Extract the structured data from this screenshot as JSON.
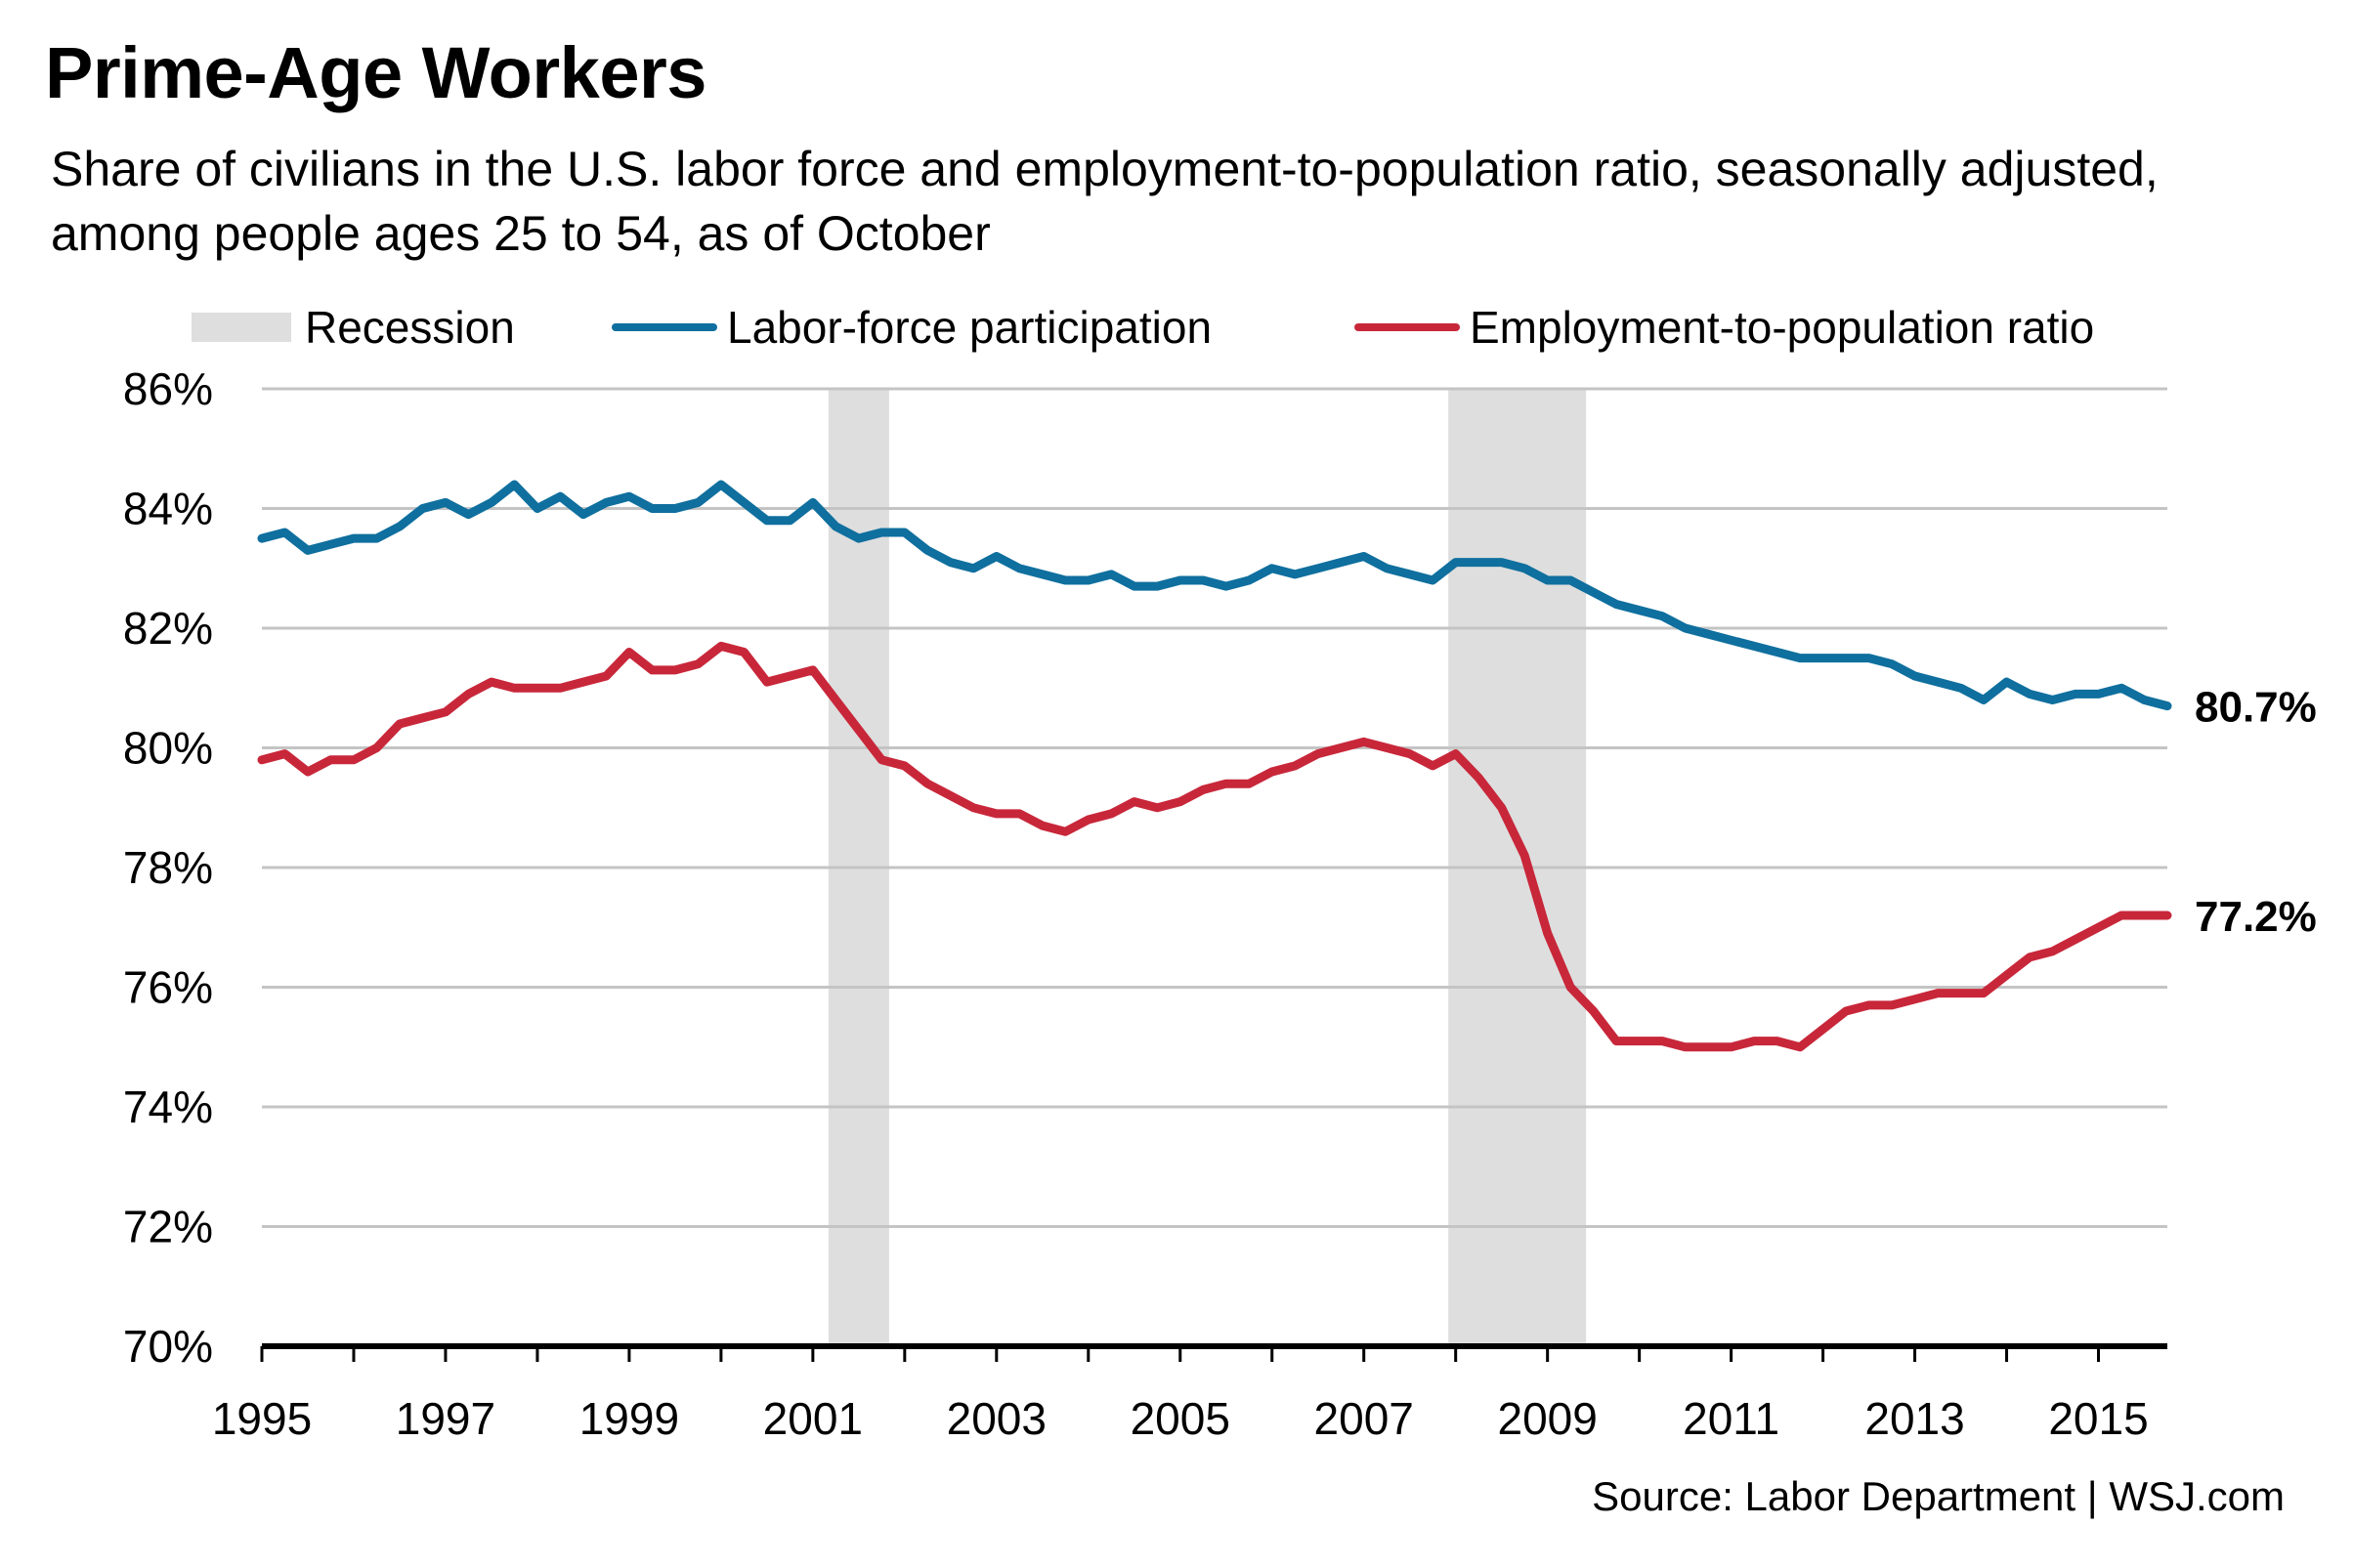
{
  "header": {
    "title": "Prime-Age Workers",
    "subtitle": "Share of civilians in the U.S. labor force and employment-to-population ratio, seasonally adjusted, among people ages 25 to 54, as of October"
  },
  "legend": {
    "recession": "Recession",
    "lfp": "Labor-force participation",
    "epop": "Employment-to-population ratio"
  },
  "source": "Source: Labor Department  |  WSJ.com",
  "colors": {
    "lfp": "#0f6f9e",
    "epop": "#c8273a",
    "recession": "#dedede",
    "grid": "#c4c4c4",
    "axis": "#000000"
  },
  "chart_data": {
    "type": "line",
    "title": "Prime-Age Workers",
    "subtitle": "Share of civilians in the U.S. labor force and employment-to-population ratio, seasonally adjusted, among people ages 25 to 54, as of October",
    "xlabel": "",
    "ylabel": "",
    "xlim": [
      1995.0,
      2015.75
    ],
    "ylim": [
      70,
      86
    ],
    "y_ticks": [
      "70%",
      "72%",
      "74%",
      "76%",
      "78%",
      "80%",
      "82%",
      "84%",
      "86%"
    ],
    "x_ticks": [
      "1995",
      "1997",
      "1999",
      "2001",
      "2003",
      "2005",
      "2007",
      "2009",
      "2011",
      "2013",
      "2015"
    ],
    "grid": "horizontal",
    "legend_position": "top",
    "recessions": [
      [
        2001.17,
        2001.83
      ],
      [
        2007.92,
        2009.42
      ]
    ],
    "series": [
      {
        "name": "Labor-force participation",
        "end_label": "80.7%",
        "x": [
          1995.0,
          1995.25,
          1995.5,
          1995.75,
          1996.0,
          1996.25,
          1996.5,
          1996.75,
          1997.0,
          1997.25,
          1997.5,
          1997.75,
          1998.0,
          1998.25,
          1998.5,
          1998.75,
          1999.0,
          1999.25,
          1999.5,
          1999.75,
          2000.0,
          2000.25,
          2000.5,
          2000.75,
          2001.0,
          2001.25,
          2001.5,
          2001.75,
          2002.0,
          2002.25,
          2002.5,
          2002.75,
          2003.0,
          2003.25,
          2003.5,
          2003.75,
          2004.0,
          2004.25,
          2004.5,
          2004.75,
          2005.0,
          2005.25,
          2005.5,
          2005.75,
          2006.0,
          2006.25,
          2006.5,
          2006.75,
          2007.0,
          2007.25,
          2007.5,
          2007.75,
          2008.0,
          2008.25,
          2008.5,
          2008.75,
          2009.0,
          2009.25,
          2009.5,
          2009.75,
          2010.0,
          2010.25,
          2010.5,
          2010.75,
          2011.0,
          2011.25,
          2011.5,
          2011.75,
          2012.0,
          2012.25,
          2012.5,
          2012.75,
          2013.0,
          2013.25,
          2013.5,
          2013.75,
          2014.0,
          2014.25,
          2014.5,
          2014.75,
          2015.0,
          2015.25,
          2015.5,
          2015.75
        ],
        "values": [
          83.5,
          83.6,
          83.3,
          83.4,
          83.5,
          83.5,
          83.7,
          84.0,
          84.1,
          83.9,
          84.1,
          84.4,
          84.0,
          84.2,
          83.9,
          84.1,
          84.2,
          84.0,
          84.0,
          84.1,
          84.4,
          84.1,
          83.8,
          83.8,
          84.1,
          83.7,
          83.5,
          83.6,
          83.6,
          83.3,
          83.1,
          83.0,
          83.2,
          83.0,
          82.9,
          82.8,
          82.8,
          82.9,
          82.7,
          82.7,
          82.8,
          82.8,
          82.7,
          82.8,
          83.0,
          82.9,
          83.0,
          83.1,
          83.2,
          83.0,
          82.9,
          82.8,
          83.1,
          83.1,
          83.1,
          83.0,
          82.8,
          82.8,
          82.6,
          82.4,
          82.3,
          82.2,
          82.0,
          81.9,
          81.8,
          81.7,
          81.6,
          81.5,
          81.5,
          81.5,
          81.5,
          81.4,
          81.2,
          81.1,
          81.0,
          80.8,
          81.1,
          80.9,
          80.8,
          80.9,
          80.9,
          81.0,
          80.8,
          80.7
        ]
      },
      {
        "name": "Employment-to-population ratio",
        "end_label": "77.2%",
        "x": [
          1995.0,
          1995.25,
          1995.5,
          1995.75,
          1996.0,
          1996.25,
          1996.5,
          1996.75,
          1997.0,
          1997.25,
          1997.5,
          1997.75,
          1998.0,
          1998.25,
          1998.5,
          1998.75,
          1999.0,
          1999.25,
          1999.5,
          1999.75,
          2000.0,
          2000.25,
          2000.5,
          2000.75,
          2001.0,
          2001.25,
          2001.5,
          2001.75,
          2002.0,
          2002.25,
          2002.5,
          2002.75,
          2003.0,
          2003.25,
          2003.5,
          2003.75,
          2004.0,
          2004.25,
          2004.5,
          2004.75,
          2005.0,
          2005.25,
          2005.5,
          2005.75,
          2006.0,
          2006.25,
          2006.5,
          2006.75,
          2007.0,
          2007.25,
          2007.5,
          2007.75,
          2008.0,
          2008.25,
          2008.5,
          2008.75,
          2009.0,
          2009.25,
          2009.5,
          2009.75,
          2010.0,
          2010.25,
          2010.5,
          2010.75,
          2011.0,
          2011.25,
          2011.5,
          2011.75,
          2012.0,
          2012.25,
          2012.5,
          2012.75,
          2013.0,
          2013.25,
          2013.5,
          2013.75,
          2014.0,
          2014.25,
          2014.5,
          2014.75,
          2015.0,
          2015.25,
          2015.5,
          2015.75
        ],
        "values": [
          79.8,
          79.9,
          79.6,
          79.8,
          79.8,
          80.0,
          80.4,
          80.5,
          80.6,
          80.9,
          81.1,
          81.0,
          81.0,
          81.0,
          81.1,
          81.2,
          81.6,
          81.3,
          81.3,
          81.4,
          81.7,
          81.6,
          81.1,
          81.2,
          81.3,
          80.8,
          80.3,
          79.8,
          79.7,
          79.4,
          79.2,
          79.0,
          78.9,
          78.9,
          78.7,
          78.6,
          78.8,
          78.9,
          79.1,
          79.0,
          79.1,
          79.3,
          79.4,
          79.4,
          79.6,
          79.7,
          79.9,
          80.0,
          80.1,
          80.0,
          79.9,
          79.7,
          79.9,
          79.5,
          79.0,
          78.2,
          76.9,
          76.0,
          75.6,
          75.1,
          75.1,
          75.1,
          75.0,
          75.0,
          75.0,
          75.1,
          75.1,
          75.0,
          75.3,
          75.6,
          75.7,
          75.7,
          75.8,
          75.9,
          75.9,
          75.9,
          76.2,
          76.5,
          76.6,
          76.8,
          77.0,
          77.2,
          77.2,
          77.2
        ]
      }
    ]
  }
}
